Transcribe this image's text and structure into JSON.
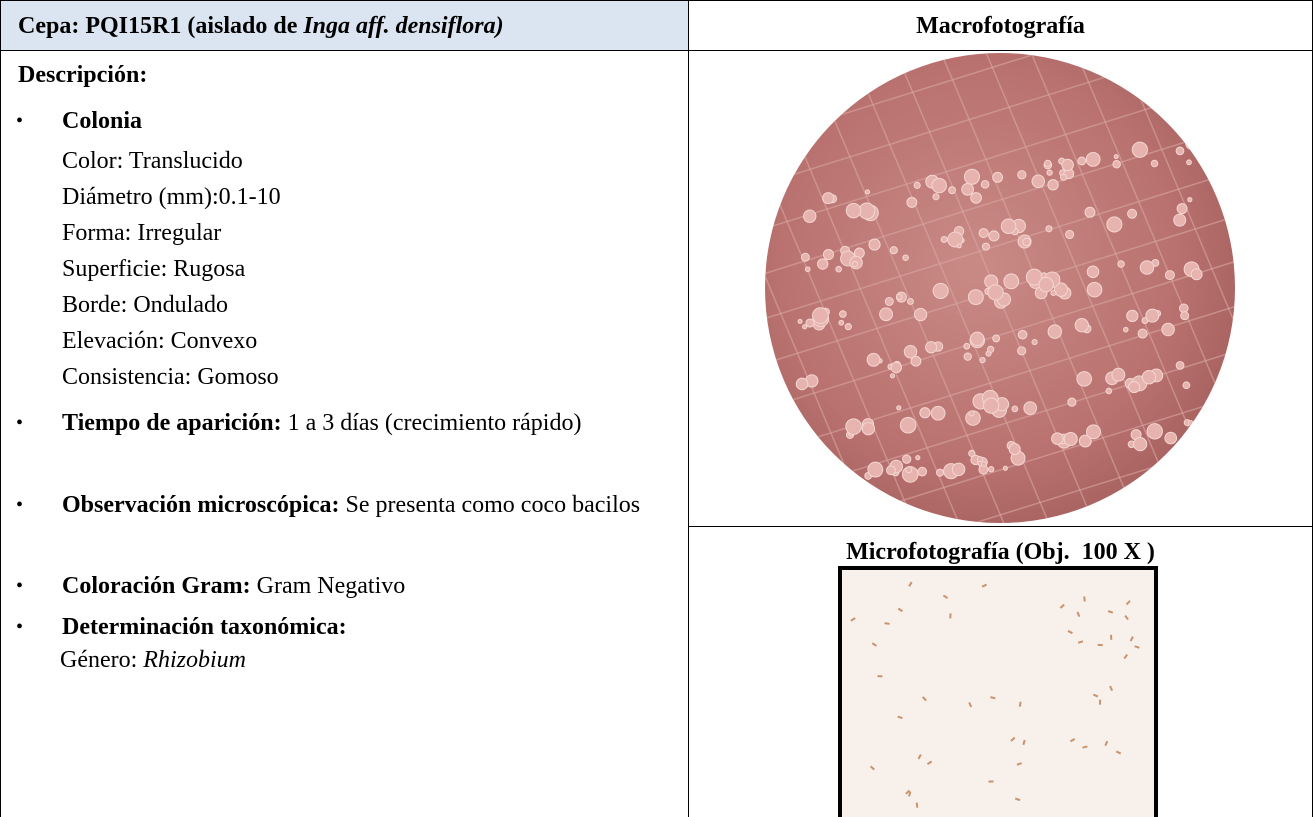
{
  "header": {
    "strain_label": "Cepa: PQI15R1 (aislado de ",
    "host": "Inga aff. densiflora)",
    "macro_title": "Macrofotografía"
  },
  "description": {
    "title": "Descripción:",
    "colony": {
      "title": "Colonia",
      "lines": [
        "Color: Translucido",
        "Diámetro (mm):0.1-10",
        "Forma: Irregular",
        "Superficie: Rugosa",
        "Borde: Ondulado",
        "Elevación: Convexo",
        "Consistencia: Gomoso"
      ]
    },
    "items": [
      {
        "label": "Tiempo de aparición:",
        "text": " 1 a 3 días (crecimiento rápido)"
      },
      {
        "label": "Observación microscópica:",
        "text": " Se presenta como coco bacilos"
      },
      {
        "label": "Coloración Gram:",
        "text": " Gram Negativo"
      },
      {
        "label": "Determinación taxonómica:",
        "text": ""
      }
    ],
    "genus_label": "Género: ",
    "genus": "Rhizobium"
  },
  "micro_title": "Microfotografía (Obj.  100 X )"
}
